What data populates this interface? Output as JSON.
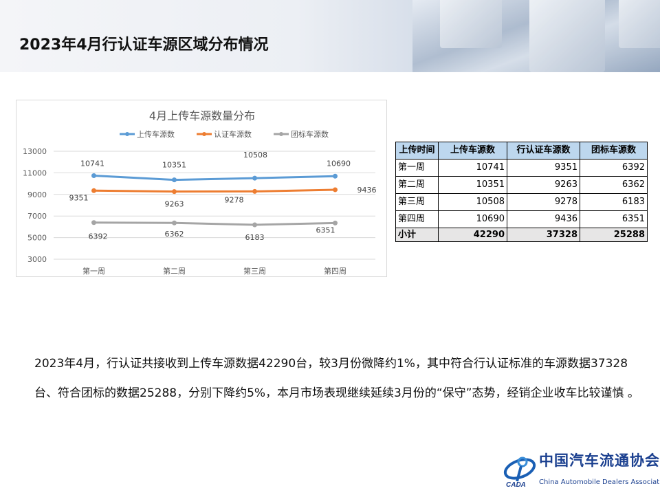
{
  "header": {
    "title": "2023年4月行认证车源区域分布情况"
  },
  "chart_data": {
    "type": "line",
    "title": "4月上传车源数量分布",
    "categories": [
      "第一周",
      "第二周",
      "第三周",
      "第四周"
    ],
    "ylim": [
      3000,
      13000
    ],
    "yticks": [
      "13000",
      "11000",
      "9000",
      "7000",
      "5000",
      "3000"
    ],
    "grid": true,
    "legend": "top",
    "series": [
      {
        "name": "上传车源数",
        "color": "#5b9bd5",
        "values": [
          10741,
          10351,
          10508,
          10690
        ]
      },
      {
        "name": "认证车源数",
        "color": "#ed7d31",
        "values": [
          9351,
          9263,
          9278,
          9436
        ]
      },
      {
        "name": "团标车源数",
        "color": "#a5a5a5",
        "values": [
          6392,
          6362,
          6183,
          6351
        ]
      }
    ]
  },
  "table": {
    "headers": [
      "上传时间",
      "上传车源数",
      "行认证车源数",
      "团标车源数"
    ],
    "rows": [
      [
        "第一周",
        "10741",
        "9351",
        "6392"
      ],
      [
        "第二周",
        "10351",
        "9263",
        "6362"
      ],
      [
        "第三周",
        "10508",
        "9278",
        "6183"
      ],
      [
        "第四周",
        "10690",
        "9436",
        "6351"
      ]
    ],
    "total": [
      "小计",
      "42290",
      "37328",
      "25288"
    ]
  },
  "paragraph": "2023年4月，行认证共接收到上传车源数据42290台，较3月份微降约1%，其中符合行认证标准的车源数据37328台、符合团标的数据25288，分别下降约5%，本月市场表现继续延续3月份的“保守”态势，经销企业收车比较谨慎 。",
  "logo": {
    "cn": "中国汽车流通协会",
    "en": "China Automobile Dealers Association",
    "mark": "CADA"
  }
}
